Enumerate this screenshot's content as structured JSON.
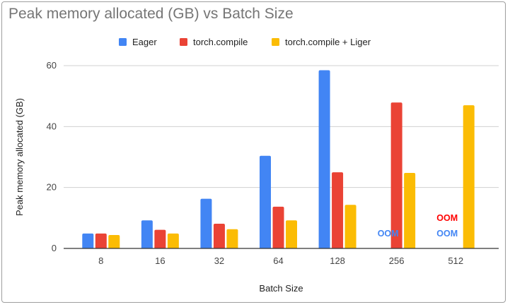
{
  "chart_data": {
    "type": "bar",
    "title": "Peak memory allocated (GB) vs Batch Size",
    "xlabel": "Batch Size",
    "ylabel": "Peak memory allocated (GB)",
    "ylim": [
      0,
      60
    ],
    "yticks": [
      "0",
      "20",
      "40",
      "60"
    ],
    "grid": true,
    "legend_position": "top",
    "categories": [
      "8",
      "16",
      "32",
      "64",
      "128",
      "256",
      "512"
    ],
    "series": [
      {
        "name": "Eager",
        "color": "#4285f4",
        "values": [
          4.9,
          9.2,
          16.3,
          30.4,
          58.5,
          null,
          null
        ]
      },
      {
        "name": "torch.compile",
        "color": "#ea4335",
        "values": [
          4.9,
          6.1,
          8.1,
          13.7,
          25.0,
          47.9,
          null
        ]
      },
      {
        "name": "torch.compile + Liger",
        "color": "#fbbc04",
        "values": [
          4.4,
          4.9,
          6.3,
          9.2,
          14.3,
          24.8,
          47.0
        ]
      }
    ],
    "annotations": [
      {
        "text": "OOM",
        "category": "256",
        "series": "Eager",
        "color": "#4285f4"
      },
      {
        "text": "OOM",
        "category": "512",
        "series": "torch.compile",
        "color": "#ff0000"
      },
      {
        "text": "OOM",
        "category": "512",
        "series": "Eager",
        "color": "#4285f4"
      }
    ]
  }
}
